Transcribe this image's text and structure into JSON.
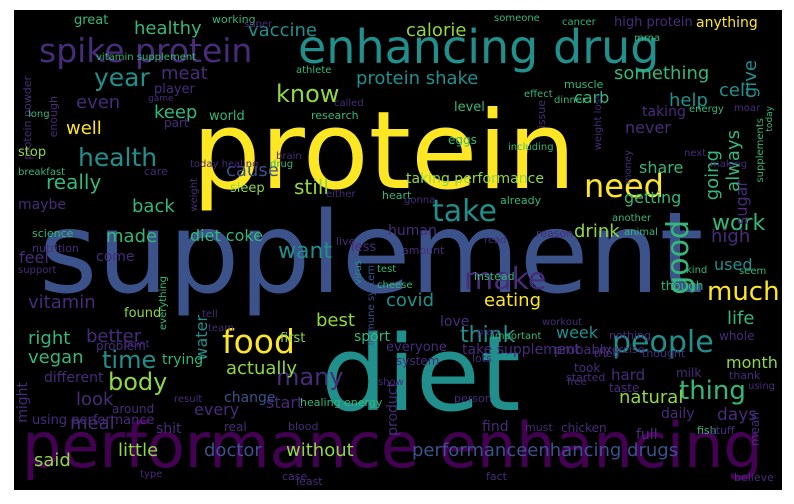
{
  "cloud": {
    "colors": {
      "background": "#000000",
      "yellow": "#fde725",
      "teal": "#21908d",
      "green": "#35b779",
      "lightgreen": "#90d743",
      "indigo": "#3b528b",
      "violet": "#472c7a",
      "purple": "#440154",
      "slate": "#31688e"
    },
    "words": [
      {
        "text": "protein"
      },
      {
        "text": "supplement"
      },
      {
        "text": "diet"
      },
      {
        "text": "performance enhancing"
      },
      {
        "text": "enhancing drug"
      },
      {
        "text": "spike protein"
      },
      {
        "text": "need"
      },
      {
        "text": "take"
      },
      {
        "text": "food"
      },
      {
        "text": "make"
      },
      {
        "text": "people"
      },
      {
        "text": "good"
      },
      {
        "text": "much"
      },
      {
        "text": "work"
      },
      {
        "text": "body"
      },
      {
        "text": "time"
      },
      {
        "text": "health"
      },
      {
        "text": "year"
      },
      {
        "text": "know"
      },
      {
        "text": "want"
      },
      {
        "text": "thing"
      },
      {
        "text": "think"
      },
      {
        "text": "many"
      },
      {
        "text": "vitamin"
      },
      {
        "text": "vaccine"
      },
      {
        "text": "calorie"
      },
      {
        "text": "healthy"
      },
      {
        "text": "protein shake"
      },
      {
        "text": "something"
      },
      {
        "text": "meat"
      },
      {
        "text": "help"
      },
      {
        "text": "even"
      },
      {
        "text": "really"
      },
      {
        "text": "keep"
      },
      {
        "text": "well"
      },
      {
        "text": "still"
      },
      {
        "text": "back"
      },
      {
        "text": "cause"
      },
      {
        "text": "drink"
      },
      {
        "text": "made"
      },
      {
        "text": "diet coke"
      },
      {
        "text": "getting"
      },
      {
        "text": "share"
      },
      {
        "text": "going"
      },
      {
        "text": "always"
      },
      {
        "text": "give"
      },
      {
        "text": "cell"
      },
      {
        "text": "carb"
      },
      {
        "text": "never"
      },
      {
        "text": "high"
      },
      {
        "text": "used"
      },
      {
        "text": "life"
      },
      {
        "text": "eating"
      },
      {
        "text": "covid"
      },
      {
        "text": "better"
      },
      {
        "text": "right"
      },
      {
        "text": "vegan"
      },
      {
        "text": "best"
      },
      {
        "text": "week"
      },
      {
        "text": "actually"
      },
      {
        "text": "look"
      },
      {
        "text": "water"
      },
      {
        "text": "month"
      },
      {
        "text": "natural"
      },
      {
        "text": "meal"
      },
      {
        "text": "every"
      },
      {
        "text": "start"
      },
      {
        "text": "said"
      },
      {
        "text": "little"
      },
      {
        "text": "doctor"
      },
      {
        "text": "without"
      },
      {
        "text": "performanceenhancing drugs"
      },
      {
        "text": "feel"
      },
      {
        "text": "sugar"
      },
      {
        "text": "taking performance"
      },
      {
        "text": "sleep"
      },
      {
        "text": "great"
      },
      {
        "text": "working"
      },
      {
        "text": "someone"
      },
      {
        "text": "cancer"
      },
      {
        "text": "high protein"
      },
      {
        "text": "anything"
      },
      {
        "text": "protein powder"
      },
      {
        "text": "vitamin supplement"
      },
      {
        "text": "player"
      },
      {
        "text": "issue"
      },
      {
        "text": "long"
      },
      {
        "text": "world"
      },
      {
        "text": "research"
      },
      {
        "text": "level"
      },
      {
        "text": "effect"
      },
      {
        "text": "weight loss"
      },
      {
        "text": "taking"
      },
      {
        "text": "eggs"
      },
      {
        "text": "muscle"
      },
      {
        "text": "athlete"
      },
      {
        "text": "mrna"
      },
      {
        "text": "dinner"
      },
      {
        "text": "energy"
      },
      {
        "text": "moar"
      },
      {
        "text": "supplements"
      },
      {
        "text": "today"
      },
      {
        "text": "stop"
      },
      {
        "text": "breakfast"
      },
      {
        "text": "maybe"
      },
      {
        "text": "drug"
      },
      {
        "text": "brain"
      },
      {
        "text": "including"
      },
      {
        "text": "heart"
      },
      {
        "text": "already"
      },
      {
        "text": "human"
      },
      {
        "text": "amount"
      },
      {
        "text": "come"
      },
      {
        "text": "less"
      },
      {
        "text": "science"
      },
      {
        "text": "nutrition"
      },
      {
        "text": "reason"
      },
      {
        "text": "another"
      },
      {
        "text": "animal"
      },
      {
        "text": "kind"
      },
      {
        "text": "seem"
      },
      {
        "text": "though"
      },
      {
        "text": "test"
      },
      {
        "text": "virus"
      },
      {
        "text": "immune system"
      },
      {
        "text": "live"
      },
      {
        "text": "cheese"
      },
      {
        "text": "read"
      },
      {
        "text": "instead"
      },
      {
        "text": "support"
      },
      {
        "text": "found"
      },
      {
        "text": "problem"
      },
      {
        "text": "everything"
      },
      {
        "text": "trying"
      },
      {
        "text": "change"
      },
      {
        "text": "first"
      },
      {
        "text": "sport"
      },
      {
        "text": "love"
      },
      {
        "text": "important"
      },
      {
        "text": "workout"
      },
      {
        "text": "exercise"
      },
      {
        "text": "nothing"
      },
      {
        "text": "thought"
      },
      {
        "text": "whole"
      },
      {
        "text": "milk"
      },
      {
        "text": "plan"
      },
      {
        "text": "team"
      },
      {
        "text": "tell"
      },
      {
        "text": "point"
      },
      {
        "text": "different"
      },
      {
        "text": "might"
      },
      {
        "text": "using performance"
      },
      {
        "text": "shit"
      },
      {
        "text": "real"
      },
      {
        "text": "around"
      },
      {
        "text": "result"
      },
      {
        "text": "blood"
      },
      {
        "text": "healing energy"
      },
      {
        "text": "product"
      },
      {
        "text": "everyone"
      },
      {
        "text": "system"
      },
      {
        "text": "take supplement"
      },
      {
        "text": "probably"
      },
      {
        "text": "took"
      },
      {
        "text": "tried"
      },
      {
        "text": "started"
      },
      {
        "text": "hard"
      },
      {
        "text": "free"
      },
      {
        "text": "taste"
      },
      {
        "text": "days"
      },
      {
        "text": "daily"
      },
      {
        "text": "fish"
      },
      {
        "text": "thank"
      },
      {
        "text": "using"
      },
      {
        "text": "mean"
      },
      {
        "text": "lots"
      },
      {
        "text": "show"
      },
      {
        "text": "person"
      },
      {
        "text": "chicken"
      },
      {
        "text": "stuff"
      },
      {
        "text": "full"
      },
      {
        "text": "find"
      },
      {
        "text": "must"
      },
      {
        "text": "case"
      },
      {
        "text": "least"
      },
      {
        "text": "fact"
      },
      {
        "text": "type"
      },
      {
        "text": "believe"
      },
      {
        "text": "enough"
      },
      {
        "text": "game"
      },
      {
        "text": "part"
      },
      {
        "text": "called"
      },
      {
        "text": "super"
      },
      {
        "text": "money"
      },
      {
        "text": "next"
      },
      {
        "text": "making"
      },
      {
        "text": "today healing"
      },
      {
        "text": "weight"
      },
      {
        "text": "care"
      },
      {
        "text": "either"
      },
      {
        "text": "gonna"
      }
    ]
  }
}
